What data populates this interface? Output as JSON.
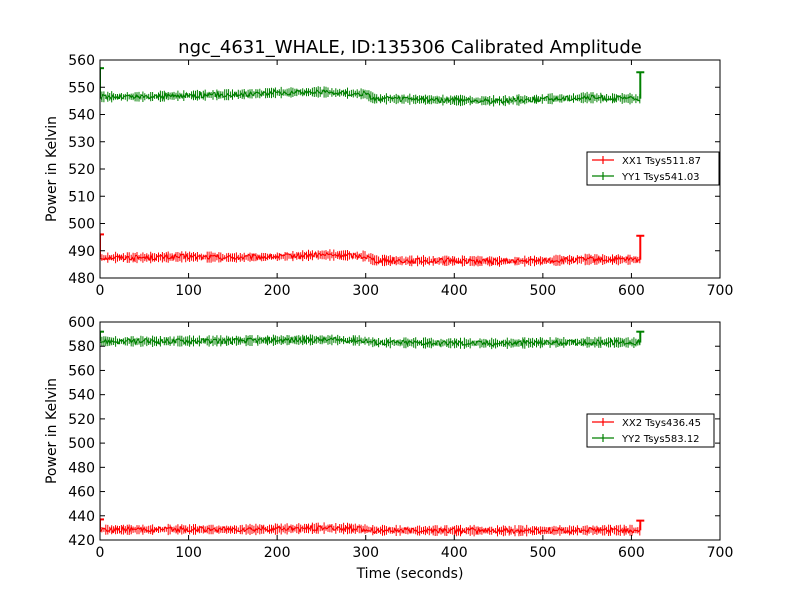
{
  "figure": {
    "title": "ngc_4631_WHALE, ID:135306 Calibrated Amplitude",
    "xlabel": "Time (seconds)"
  },
  "chart_data": [
    {
      "type": "line",
      "ylabel": "Power in Kelvin",
      "xlim": [
        0,
        700
      ],
      "ylim": [
        480,
        560
      ],
      "xticks": [
        0,
        100,
        200,
        300,
        400,
        500,
        600,
        700
      ],
      "yticks": [
        480,
        490,
        500,
        510,
        520,
        530,
        540,
        550,
        560
      ],
      "grid": false,
      "legend_position": "center-right",
      "series": [
        {
          "name": "XX1 Tsys511.87",
          "color": "#ff0000",
          "x": [
            0,
            50,
            100,
            150,
            200,
            250,
            280,
            300,
            310,
            350,
            400,
            450,
            500,
            550,
            600,
            610
          ],
          "y": [
            487.5,
            487.5,
            487.8,
            487.5,
            487.8,
            488.5,
            488.3,
            488,
            486.5,
            486.3,
            486.3,
            486.1,
            486.3,
            486.8,
            486.7,
            486.7
          ],
          "spikes": [
            {
              "x": 0,
              "y": 496
            },
            {
              "x": 610,
              "y": 495.5
            }
          ]
        },
        {
          "name": "YY1 Tsys541.03",
          "color": "#008000",
          "x": [
            0,
            50,
            100,
            150,
            200,
            250,
            280,
            300,
            310,
            350,
            400,
            450,
            500,
            550,
            600,
            610
          ],
          "y": [
            546.5,
            546.5,
            547,
            547.3,
            548,
            548.3,
            547.8,
            547.5,
            545.8,
            545.6,
            545.2,
            545,
            545.7,
            546.2,
            545.8,
            545.8
          ],
          "spikes": [
            {
              "x": 0,
              "y": 557
            },
            {
              "x": 610,
              "y": 555.5
            }
          ]
        }
      ]
    },
    {
      "type": "line",
      "ylabel": "Power in Kelvin",
      "xlabel": "Time (seconds)",
      "xlim": [
        0,
        700
      ],
      "ylim": [
        420,
        600
      ],
      "xticks": [
        0,
        100,
        200,
        300,
        400,
        500,
        600,
        700
      ],
      "yticks": [
        420,
        440,
        460,
        480,
        500,
        520,
        540,
        560,
        580,
        600
      ],
      "grid": false,
      "legend_position": "center-right",
      "series": [
        {
          "name": "XX2 Tsys436.45",
          "color": "#ff0000",
          "x": [
            0,
            50,
            100,
            150,
            200,
            250,
            280,
            300,
            310,
            350,
            400,
            450,
            500,
            550,
            600,
            610
          ],
          "y": [
            428.5,
            428.5,
            428.8,
            428.5,
            429,
            429.8,
            429.5,
            429,
            428,
            427.8,
            427.8,
            427.6,
            427.8,
            428,
            428,
            428
          ],
          "spikes": [
            {
              "x": 0,
              "y": 437
            },
            {
              "x": 610,
              "y": 436
            }
          ]
        },
        {
          "name": "YY2 Tsys583.12",
          "color": "#008000",
          "x": [
            0,
            50,
            100,
            150,
            200,
            250,
            280,
            300,
            310,
            350,
            400,
            450,
            500,
            550,
            600,
            610
          ],
          "y": [
            584,
            584,
            584.3,
            584.5,
            585,
            585.3,
            585,
            584.5,
            583,
            582.8,
            582.5,
            582.3,
            583,
            583.3,
            583,
            583
          ],
          "spikes": [
            {
              "x": 0,
              "y": 592
            },
            {
              "x": 610,
              "y": 592
            }
          ]
        }
      ]
    }
  ]
}
